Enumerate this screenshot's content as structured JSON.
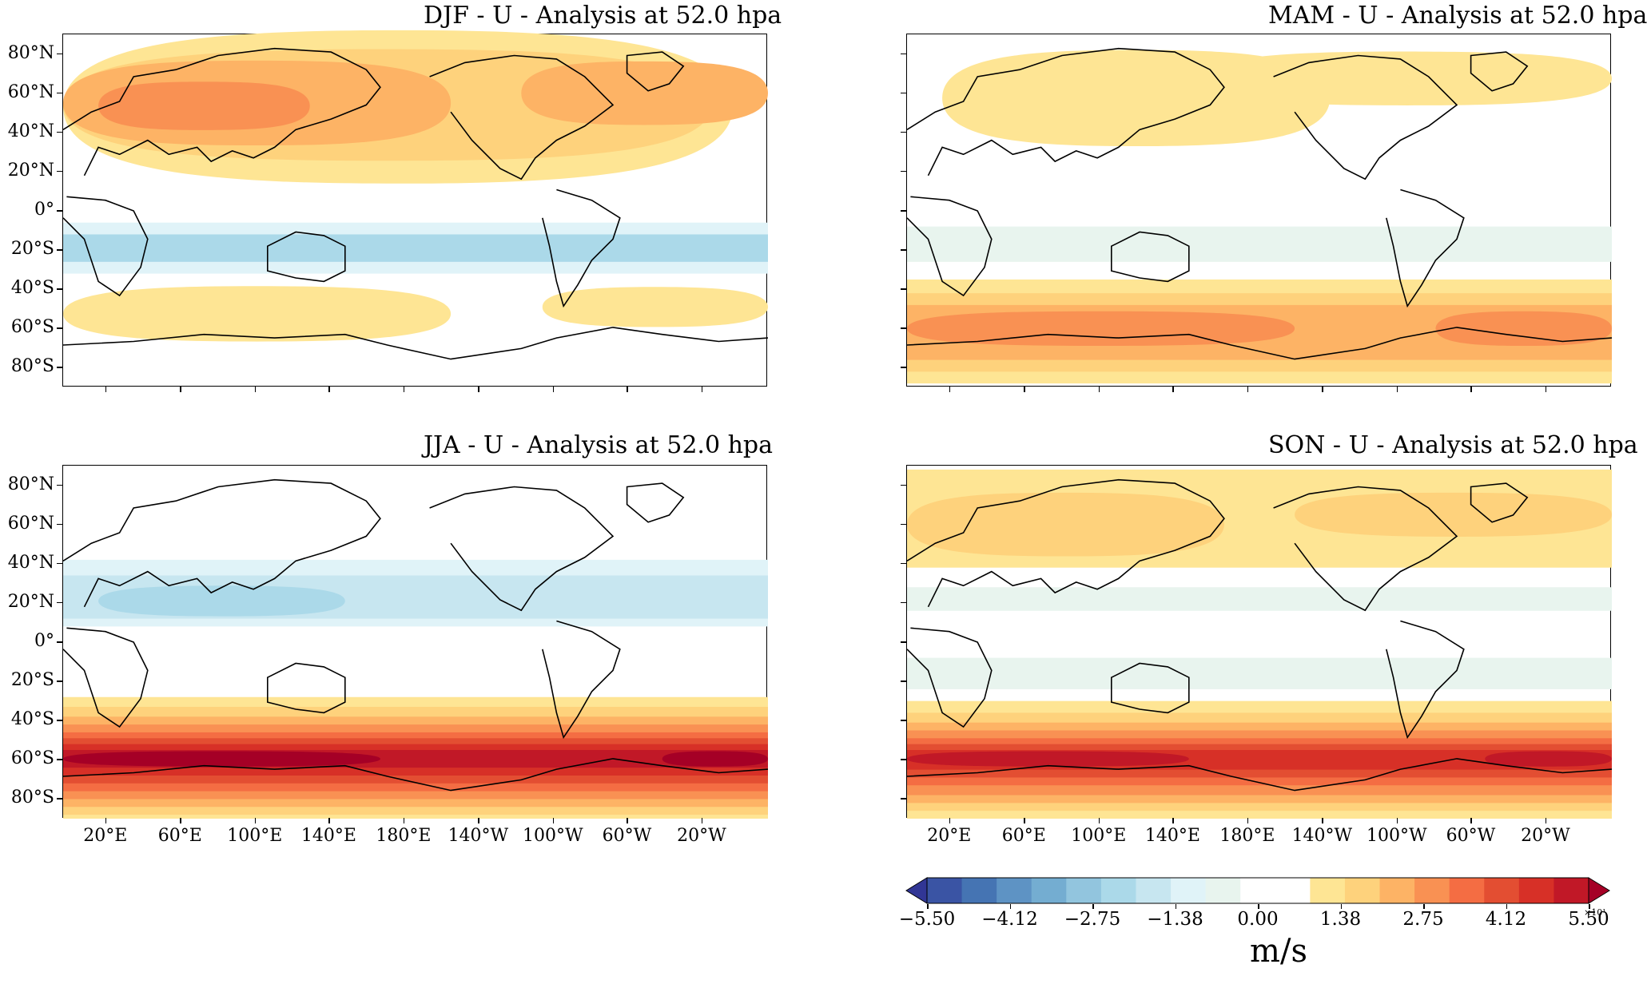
{
  "panels": [
    {
      "id": "djf",
      "title": "DJF - U - Analysis at 52.0 hpa"
    },
    {
      "id": "mam",
      "title": "MAM - U - Analysis at 52.0 hpa"
    },
    {
      "id": "jja",
      "title": "JJA - U - Analysis at 52.0 hpa"
    },
    {
      "id": "son",
      "title": "SON - U - Analysis at 52.0 hpa"
    }
  ],
  "lat_ticks": [
    "80°N",
    "60°N",
    "40°N",
    "20°N",
    "0°",
    "20°S",
    "40°S",
    "60°S",
    "80°S"
  ],
  "lon_ticks": [
    "20°E",
    "60°E",
    "100°E",
    "140°E",
    "180°E",
    "140°W",
    "100°W",
    "60°W",
    "20°W"
  ],
  "colorbar": {
    "tick_labels": [
      "−5.50",
      "−4.12",
      "−2.75",
      "−1.38",
      "0.00",
      "1.38",
      "2.75",
      "4.12",
      "5.50"
    ],
    "unit": "m/s",
    "exponent": "×10¹",
    "colors": [
      "#313695",
      "#3a54a4",
      "#4574b3",
      "#5e93c4",
      "#74add1",
      "#92c5de",
      "#abd9e9",
      "#c7e6f0",
      "#e0f3f8",
      "#e8f4ee",
      "#ffffff",
      "#ffffff",
      "#fee594",
      "#fed27c",
      "#fdb365",
      "#f99153",
      "#f46d43",
      "#e34e32",
      "#d73027",
      "#c11827",
      "#a50026"
    ]
  },
  "map_data": {
    "djf": {
      "nh_jet": 3.0,
      "tropics": -1.1,
      "sh_midlat": 1.0
    },
    "mam": {
      "nh_jet": 1.0,
      "tropics": -0.4,
      "sh_jet": 2.3
    },
    "jja": {
      "nh_subtrop": -1.6,
      "sh_jet": 5.3
    },
    "son": {
      "nh_jet": 1.2,
      "tropics": -0.5,
      "sh_jet": 4.6
    }
  }
}
